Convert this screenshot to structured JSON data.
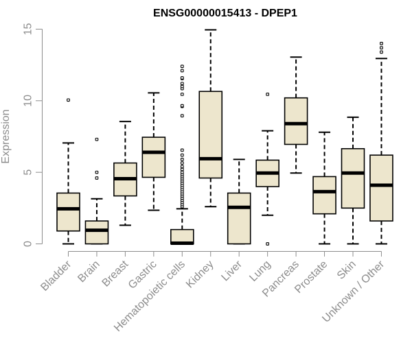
{
  "chart_data": {
    "type": "boxplot",
    "title": "ENSG00000015413 - DPEP1",
    "ylabel": "Expression",
    "xlabel": "",
    "ylim": [
      0,
      15
    ],
    "yticks": [
      0,
      5,
      10,
      15
    ],
    "colors": {
      "box_fill": "#ede6cd",
      "stroke": "#000000",
      "axis": "#8c8c8c"
    },
    "categories": [
      "Bladder",
      "Brain",
      "Breast",
      "Gastric",
      "Hematopoietic cells",
      "Kidney",
      "Liver",
      "Lung",
      "Pancreas",
      "Prostate",
      "Skin",
      "Unknown / Other"
    ],
    "boxes": [
      {
        "category": "Bladder",
        "whisker_low": 0.0,
        "q1": 0.9,
        "median": 2.45,
        "q3": 3.55,
        "whisker_high": 7.05,
        "outliers": [
          10.05
        ]
      },
      {
        "category": "Brain",
        "whisker_low": 0.0,
        "q1": 0.0,
        "median": 0.95,
        "q3": 1.6,
        "whisker_high": 3.15,
        "outliers": [
          4.6,
          5.0,
          7.3
        ]
      },
      {
        "category": "Breast",
        "whisker_low": 1.3,
        "q1": 3.35,
        "median": 4.55,
        "q3": 5.65,
        "whisker_high": 8.55,
        "outliers": []
      },
      {
        "category": "Gastric",
        "whisker_low": 2.35,
        "q1": 4.65,
        "median": 6.4,
        "q3": 7.45,
        "whisker_high": 10.55,
        "outliers": []
      },
      {
        "category": "Hematopoietic cells",
        "whisker_low": 0.0,
        "q1": 0.0,
        "median": 0.05,
        "q3": 1.0,
        "whisker_high": 2.45,
        "outliers": [
          2.6,
          2.75,
          2.9,
          3.05,
          3.2,
          3.35,
          3.5,
          3.65,
          3.8,
          3.95,
          4.1,
          4.25,
          4.4,
          4.55,
          4.7,
          4.85,
          5.0,
          5.2,
          5.4,
          5.65,
          5.9,
          6.2,
          6.55,
          8.95,
          9.6,
          9.65,
          10.45,
          10.85,
          11.0,
          11.2,
          11.55,
          11.6,
          12.1,
          12.4
        ]
      },
      {
        "category": "Kidney",
        "whisker_low": 2.6,
        "q1": 4.6,
        "median": 5.95,
        "q3": 10.65,
        "whisker_high": 14.95,
        "outliers": []
      },
      {
        "category": "Liver",
        "whisker_low": 0.0,
        "q1": 0.0,
        "median": 2.55,
        "q3": 3.55,
        "whisker_high": 5.9,
        "outliers": []
      },
      {
        "category": "Lung",
        "whisker_low": 2.0,
        "q1": 4.0,
        "median": 4.95,
        "q3": 5.85,
        "whisker_high": 7.9,
        "outliers": [
          0.0,
          10.45
        ]
      },
      {
        "category": "Pancreas",
        "whisker_low": 4.95,
        "q1": 6.95,
        "median": 8.4,
        "q3": 10.2,
        "whisker_high": 13.05,
        "outliers": []
      },
      {
        "category": "Prostate",
        "whisker_low": 0.0,
        "q1": 2.1,
        "median": 3.65,
        "q3": 4.7,
        "whisker_high": 7.8,
        "outliers": []
      },
      {
        "category": "Skin",
        "whisker_low": 0.0,
        "q1": 2.5,
        "median": 4.95,
        "q3": 6.65,
        "whisker_high": 8.85,
        "outliers": []
      },
      {
        "category": "Unknown / Other",
        "whisker_low": 0.0,
        "q1": 1.6,
        "median": 4.1,
        "q3": 6.2,
        "whisker_high": 12.95,
        "outliers": [
          13.4,
          13.7,
          14.0
        ]
      }
    ]
  }
}
